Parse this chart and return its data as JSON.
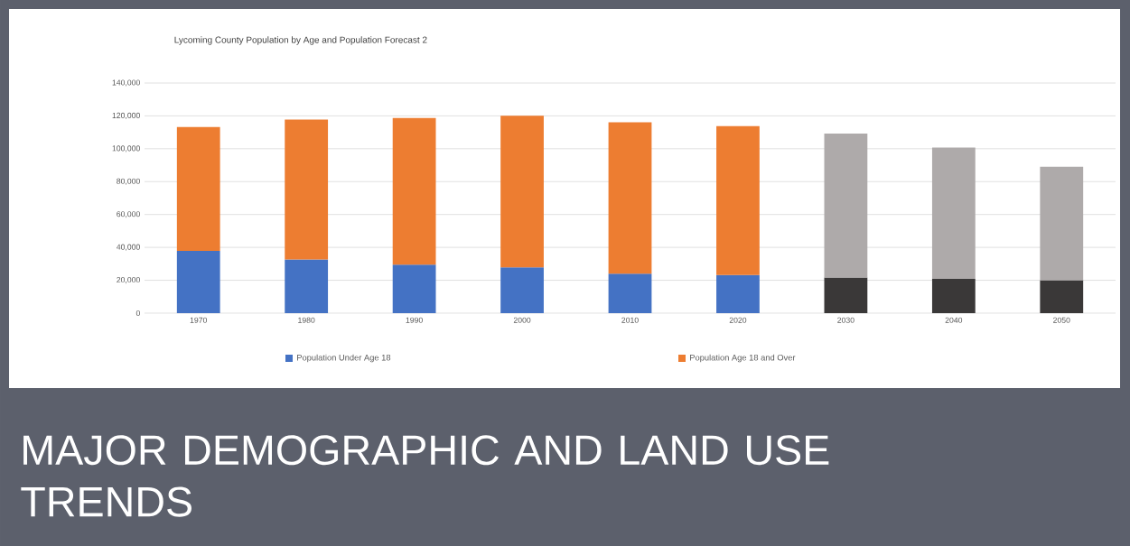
{
  "chart_data": {
    "type": "bar",
    "title": "Lycoming County Population by Age and Population Forecast 2",
    "annotations": [
      "MAJOR DEMOGRAPHIC AND LAND USE TRENDS"
    ],
    "categories": [
      "1970",
      "1980",
      "1990",
      "2000",
      "2010",
      "2020",
      "2030",
      "2040",
      "2050"
    ],
    "series": [
      {
        "name": "Population Under Age 18",
        "color": "#4472c4",
        "colors": [
          "#4472c4",
          "#4472c4",
          "#4472c4",
          "#4472c4",
          "#4472c4",
          "#4472c4",
          "#3a3838",
          "#3a3838",
          "#3a3838"
        ],
        "values": [
          37900,
          32700,
          29500,
          27800,
          24000,
          23200,
          21700,
          20900,
          20000
        ]
      },
      {
        "name": "Population Age 18 and Over",
        "color": "#ed7d31",
        "colors": [
          "#ed7d31",
          "#ed7d31",
          "#ed7d31",
          "#ed7d31",
          "#ed7d31",
          "#ed7d31",
          "#aeaaaa",
          "#aeaaaa",
          "#aeaaaa"
        ],
        "values": [
          75300,
          85100,
          89200,
          92300,
          92100,
          90600,
          87500,
          79800,
          69100
        ]
      }
    ],
    "stacked": true,
    "ylim": [
      0,
      140000
    ],
    "yticks": [
      {
        "value": 0,
        "label": "0"
      },
      {
        "value": 20000,
        "label": "20,000"
      },
      {
        "value": 40000,
        "label": "40,000"
      },
      {
        "value": 60000,
        "label": "60,000"
      },
      {
        "value": 80000,
        "label": "80,000"
      },
      {
        "value": 100000,
        "label": "100,000"
      },
      {
        "value": 120000,
        "label": "120,000"
      },
      {
        "value": 140000,
        "label": "140,000"
      }
    ],
    "grid": "y",
    "legend": "bottom"
  }
}
